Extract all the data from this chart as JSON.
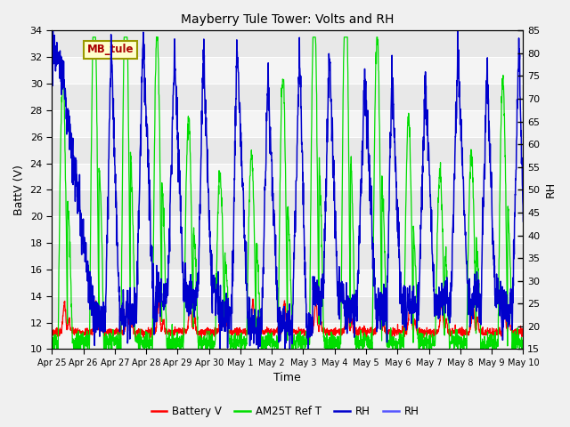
{
  "title": "Mayberry Tule Tower: Volts and RH",
  "xlabel": "Time",
  "ylabel_left": "BattV (V)",
  "ylabel_right": "RH",
  "annotation": "MB_tule",
  "ylim_left": [
    10,
    34
  ],
  "ylim_right": [
    15,
    85
  ],
  "yticks_left": [
    10,
    12,
    14,
    16,
    18,
    20,
    22,
    24,
    26,
    28,
    30,
    32,
    34
  ],
  "yticks_right": [
    15,
    20,
    25,
    30,
    35,
    40,
    45,
    50,
    55,
    60,
    65,
    70,
    75,
    80,
    85
  ],
  "xtick_labels": [
    "Apr 25",
    "Apr 26",
    "Apr 27",
    "Apr 28",
    "Apr 29",
    "Apr 30",
    "May 1",
    "May 2",
    "May 3",
    "May 4",
    "May 5",
    "May 6",
    "May 7",
    "May 8",
    "May 9",
    "May 10"
  ],
  "fig_facecolor": "#f0f0f0",
  "axes_facecolor": "#e8e8e8",
  "grid_colors": [
    "#ffffff",
    "#d0d0d0"
  ],
  "line_colors": {
    "battery": "#ff0000",
    "am25t": "#00dd00",
    "rh_dark": "#0000cc",
    "rh_light": "#5555ff"
  },
  "legend_labels": [
    "Battery V",
    "AM25T Ref T",
    "RH",
    "RH"
  ],
  "legend_colors": [
    "#ff0000",
    "#00dd00",
    "#0000cc",
    "#5555ff"
  ],
  "n_days": 15,
  "n_points": 2160
}
